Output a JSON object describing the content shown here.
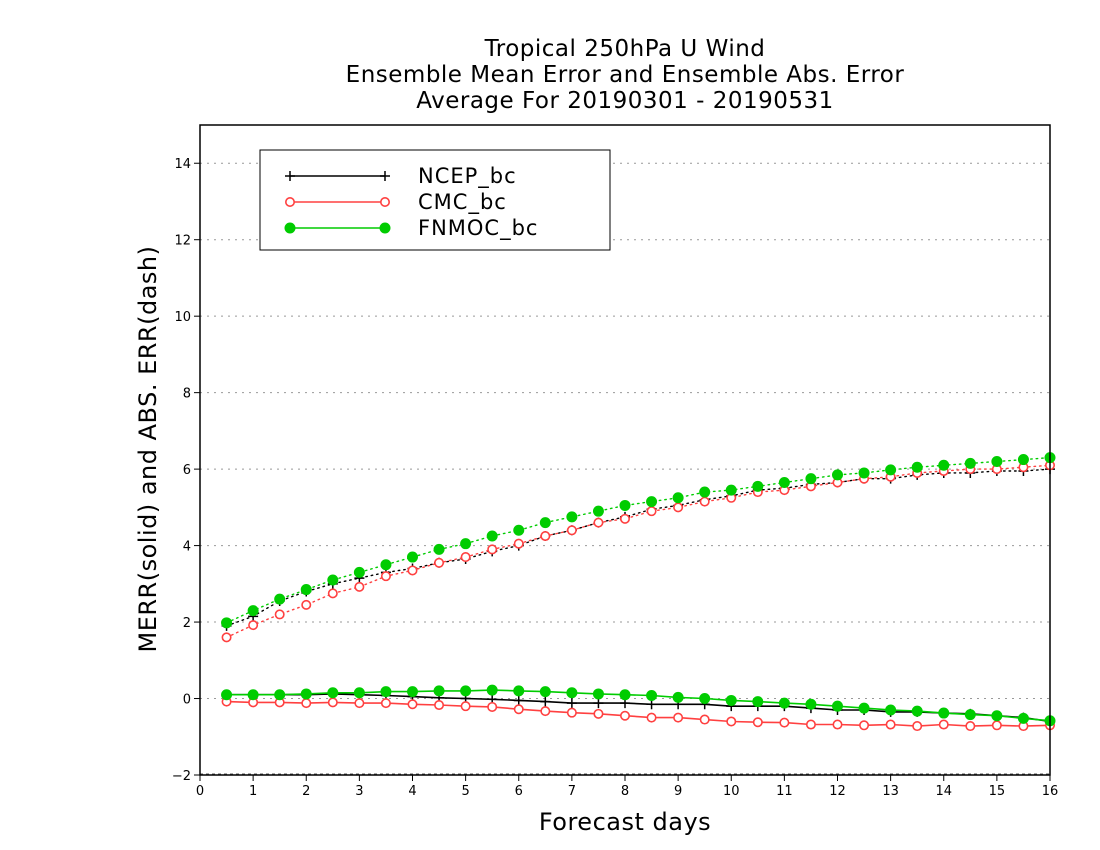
{
  "chart_data": {
    "type": "line",
    "title": [
      "Tropical 250hPa U Wind",
      "Ensemble Mean Error and Ensemble Abs. Error",
      "Average For 20190301 - 20190531"
    ],
    "xlabel": "Forecast days",
    "ylabel": "MERR(solid) and ABS. ERR(dash)",
    "xlim": [
      0,
      16
    ],
    "ylim": [
      -2,
      15
    ],
    "xticks": [
      "0",
      "1",
      "2",
      "3",
      "4",
      "5",
      "6",
      "7",
      "8",
      "9",
      "10",
      "11",
      "12",
      "13",
      "14",
      "15",
      "16"
    ],
    "yticks": [
      "−2",
      "0",
      "2",
      "4",
      "6",
      "8",
      "10",
      "12",
      "14"
    ],
    "grid": "horizontal dotted",
    "legend_position": "top-left",
    "x": [
      0.5,
      1,
      1.5,
      2,
      2.5,
      3,
      3.5,
      4,
      4.5,
      5,
      5.5,
      6,
      6.5,
      7,
      7.5,
      8,
      8.5,
      9,
      9.5,
      10,
      10.5,
      11,
      11.5,
      12,
      12.5,
      13,
      13.5,
      14,
      14.5,
      15,
      15.5,
      16
    ],
    "series": [
      {
        "name": "NCEP_bc",
        "color": "#000000",
        "marker": "plus",
        "merr": [
          0.1,
          0.1,
          0.1,
          0.1,
          0.12,
          0.1,
          0.08,
          0.05,
          0.02,
          0,
          -0.02,
          -0.05,
          -0.08,
          -0.12,
          -0.12,
          -0.12,
          -0.15,
          -0.15,
          -0.15,
          -0.2,
          -0.2,
          -0.2,
          -0.25,
          -0.3,
          -0.3,
          -0.35,
          -0.35,
          -0.38,
          -0.4,
          -0.45,
          -0.5,
          -0.6
        ],
        "abs_err": [
          1.9,
          2.15,
          2.55,
          2.8,
          3.0,
          3.15,
          3.3,
          3.4,
          3.55,
          3.65,
          3.85,
          4.0,
          4.25,
          4.4,
          4.6,
          4.75,
          4.95,
          5.05,
          5.2,
          5.3,
          5.45,
          5.5,
          5.6,
          5.65,
          5.75,
          5.75,
          5.85,
          5.9,
          5.9,
          5.95,
          5.95,
          6.0
        ]
      },
      {
        "name": "CMC_bc",
        "color": "#ff4040",
        "marker": "open-circle",
        "merr": [
          -0.08,
          -0.1,
          -0.1,
          -0.12,
          -0.1,
          -0.12,
          -0.12,
          -0.15,
          -0.17,
          -0.2,
          -0.22,
          -0.28,
          -0.33,
          -0.37,
          -0.4,
          -0.45,
          -0.5,
          -0.5,
          -0.55,
          -0.6,
          -0.62,
          -0.63,
          -0.68,
          -0.68,
          -0.7,
          -0.68,
          -0.72,
          -0.68,
          -0.72,
          -0.7,
          -0.72,
          -0.7
        ],
        "abs_err": [
          1.6,
          1.92,
          2.2,
          2.45,
          2.75,
          2.92,
          3.2,
          3.35,
          3.55,
          3.7,
          3.9,
          4.05,
          4.25,
          4.4,
          4.6,
          4.7,
          4.9,
          5.0,
          5.15,
          5.25,
          5.4,
          5.45,
          5.55,
          5.65,
          5.75,
          5.8,
          5.9,
          5.95,
          6.0,
          6.0,
          6.05,
          6.1
        ]
      },
      {
        "name": "FNMOC_bc",
        "color": "#00cc00",
        "marker": "filled-circle",
        "merr": [
          0.1,
          0.1,
          0.1,
          0.12,
          0.15,
          0.15,
          0.18,
          0.18,
          0.2,
          0.2,
          0.22,
          0.2,
          0.18,
          0.15,
          0.12,
          0.1,
          0.08,
          0.03,
          0,
          -0.05,
          -0.08,
          -0.12,
          -0.15,
          -0.2,
          -0.25,
          -0.3,
          -0.33,
          -0.38,
          -0.42,
          -0.45,
          -0.52,
          -0.58
        ],
        "abs_err": [
          1.98,
          2.3,
          2.6,
          2.85,
          3.1,
          3.3,
          3.5,
          3.7,
          3.9,
          4.05,
          4.25,
          4.4,
          4.6,
          4.75,
          4.9,
          5.05,
          5.15,
          5.25,
          5.4,
          5.45,
          5.55,
          5.65,
          5.75,
          5.85,
          5.9,
          5.98,
          6.05,
          6.1,
          6.15,
          6.2,
          6.25,
          6.3
        ]
      }
    ]
  }
}
